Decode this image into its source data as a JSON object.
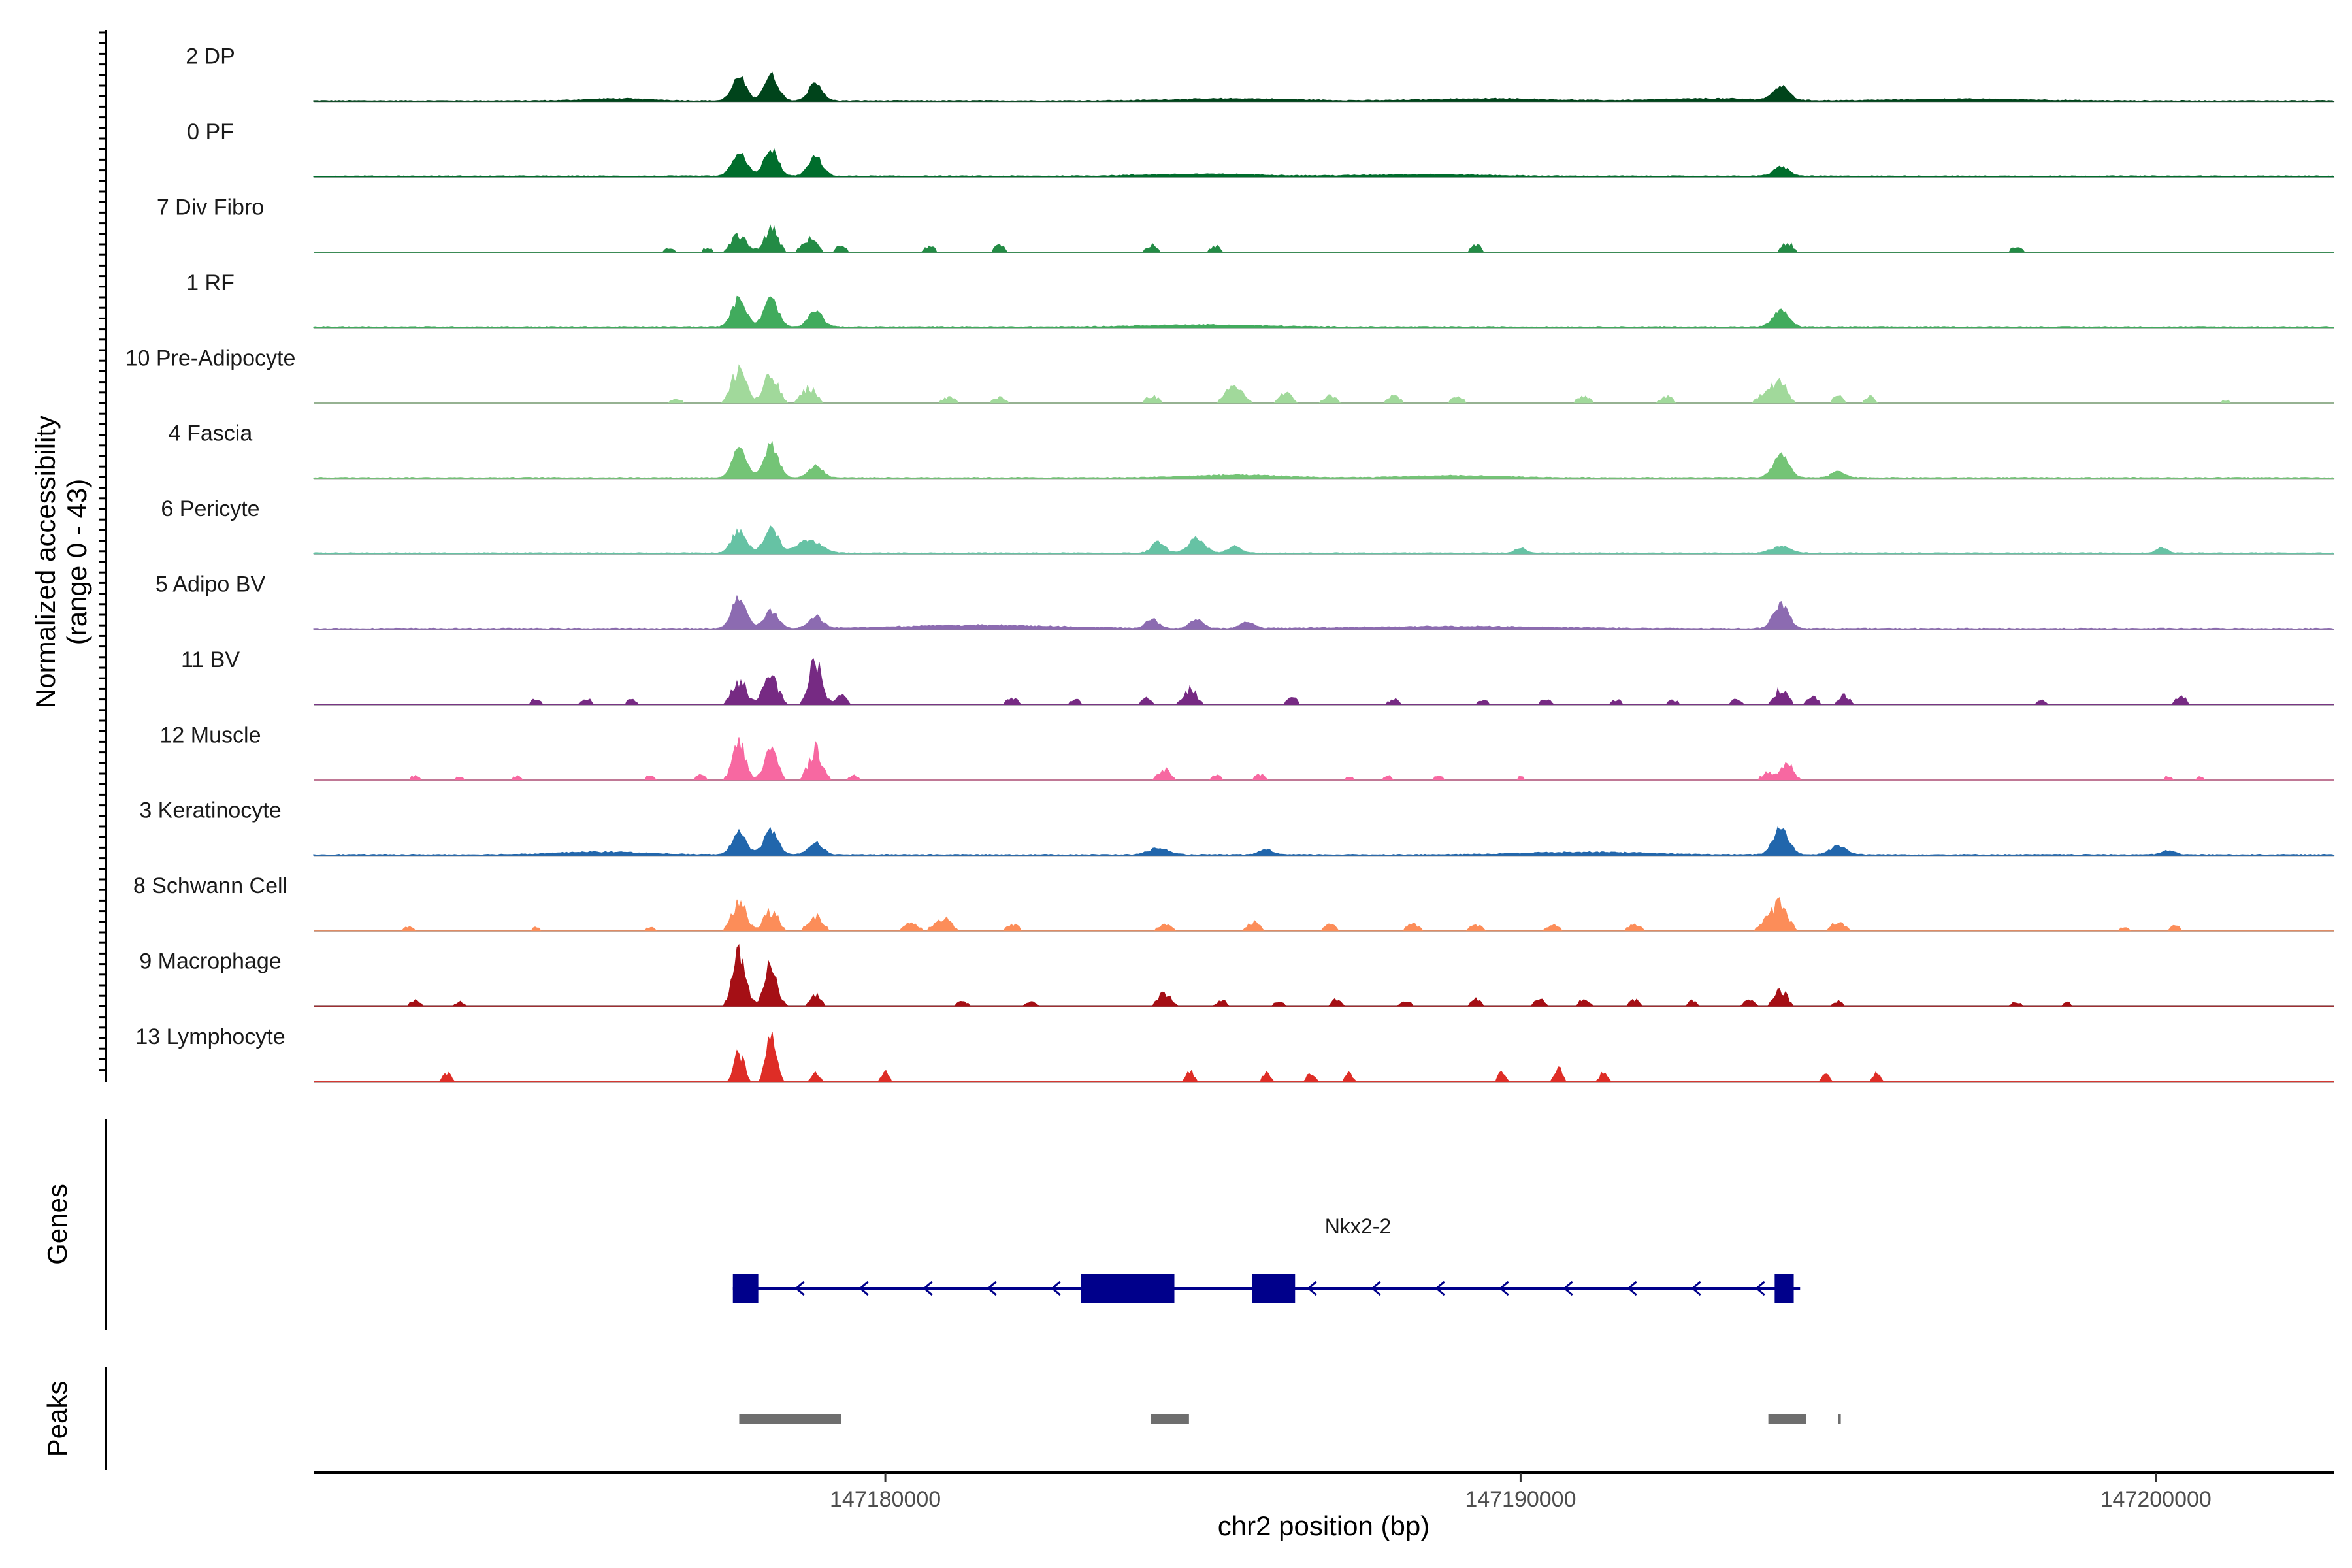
{
  "chart_data": {
    "type": "area",
    "title": "",
    "chromosome": "chr2",
    "xlabel": "chr2 position (bp)",
    "ylabel_line1": "Normalized accessibility",
    "ylabel_line2": "(range 0 - 43)",
    "xlim": [
      147171000,
      147202800
    ],
    "ylim": [
      0,
      43
    ],
    "x_ticks": [
      {
        "value": 147180000,
        "label": "147180000"
      },
      {
        "value": 147190000,
        "label": "147190000"
      },
      {
        "value": 147200000,
        "label": "147200000"
      }
    ],
    "series": [
      {
        "name": "2 DP",
        "label": "2 DP",
        "color": "#00441b",
        "mode": "smooth",
        "peaks": [
          [
            147177700,
            35,
            110
          ],
          [
            147178200,
            38,
            110
          ],
          [
            147178900,
            25,
            110
          ],
          [
            147194100,
            22,
            120
          ],
          [
            147185500,
            3,
            900
          ],
          [
            147189500,
            3,
            900
          ],
          [
            147193000,
            3,
            800
          ],
          [
            147197000,
            2.5,
            1000
          ],
          [
            147175800,
            3,
            500
          ]
        ]
      },
      {
        "name": "0 PF",
        "label": "0 PF",
        "color": "#006d2c",
        "mode": "smooth",
        "peaks": [
          [
            147177700,
            38,
            110
          ],
          [
            147178200,
            40,
            110
          ],
          [
            147178900,
            28,
            110
          ],
          [
            147194100,
            14,
            120
          ],
          [
            147185000,
            3,
            900
          ],
          [
            147188500,
            2.5,
            900
          ]
        ]
      },
      {
        "name": "7 Div Fibro",
        "label": "7 Div Fibro",
        "color": "#238b45",
        "mode": "spiky",
        "peaks": [
          [
            147176600,
            8,
            80
          ],
          [
            147177200,
            7,
            80
          ],
          [
            147177700,
            30,
            110
          ],
          [
            147178200,
            38,
            110
          ],
          [
            147178800,
            22,
            110
          ],
          [
            147179300,
            12,
            80
          ],
          [
            147180700,
            10,
            80
          ],
          [
            147181800,
            12,
            80
          ],
          [
            147184200,
            12,
            80
          ],
          [
            147185200,
            10,
            80
          ],
          [
            147189300,
            15,
            70
          ],
          [
            147194200,
            16,
            80
          ],
          [
            147197800,
            10,
            80
          ]
        ]
      },
      {
        "name": "1 RF",
        "label": "1 RF",
        "color": "#41ab5d",
        "mode": "smooth",
        "peaks": [
          [
            147177700,
            42,
            110
          ],
          [
            147178200,
            42,
            110
          ],
          [
            147178900,
            24,
            110
          ],
          [
            147194100,
            24,
            120
          ],
          [
            147185000,
            3,
            900
          ]
        ]
      },
      {
        "name": "10 Pre-Adipocyte",
        "label": "10 Pre-Adipocyte",
        "color": "#a1d99b",
        "mode": "spiky",
        "peaks": [
          [
            147177700,
            60,
            110
          ],
          [
            147178200,
            45,
            110
          ],
          [
            147178800,
            25,
            110
          ],
          [
            147176700,
            7,
            100
          ],
          [
            147181000,
            10,
            100
          ],
          [
            147181800,
            9,
            100
          ],
          [
            147184200,
            12,
            100
          ],
          [
            147185500,
            28,
            130
          ],
          [
            147186300,
            16,
            100
          ],
          [
            147187000,
            12,
            100
          ],
          [
            147188000,
            12,
            100
          ],
          [
            147189000,
            10,
            100
          ],
          [
            147191000,
            11,
            100
          ],
          [
            147192300,
            10,
            100
          ],
          [
            147193900,
            24,
            120
          ],
          [
            147194100,
            30,
            100
          ],
          [
            147195000,
            12,
            80
          ],
          [
            147195500,
            10,
            80
          ],
          [
            147201100,
            5,
            100
          ]
        ]
      },
      {
        "name": "4 Fascia",
        "label": "4 Fascia",
        "color": "#74c476",
        "mode": "smooth",
        "peaks": [
          [
            147177700,
            42,
            110
          ],
          [
            147178200,
            48,
            110
          ],
          [
            147178900,
            18,
            110
          ],
          [
            147194100,
            35,
            120
          ],
          [
            147195000,
            10,
            100
          ],
          [
            147185500,
            4,
            700
          ],
          [
            147189000,
            3,
            700
          ]
        ]
      },
      {
        "name": "6 Pericyte",
        "label": "6 Pericyte",
        "color": "#66c2a4",
        "mode": "smooth",
        "peaks": [
          [
            147177700,
            35,
            110
          ],
          [
            147178200,
            38,
            110
          ],
          [
            147178800,
            20,
            180
          ],
          [
            147184300,
            18,
            100
          ],
          [
            147184900,
            22,
            130
          ],
          [
            147185500,
            10,
            100
          ],
          [
            147190000,
            8,
            80
          ],
          [
            147194100,
            10,
            150
          ],
          [
            147200100,
            9,
            80
          ]
        ]
      },
      {
        "name": "5 Adipo BV",
        "label": "5 Adipo BV",
        "color": "#8c6bb1",
        "mode": "smooth",
        "peaks": [
          [
            147177700,
            48,
            110
          ],
          [
            147178200,
            26,
            110
          ],
          [
            147178900,
            18,
            110
          ],
          [
            147184200,
            13,
            100
          ],
          [
            147184900,
            15,
            100
          ],
          [
            147185700,
            10,
            100
          ],
          [
            147194100,
            36,
            120
          ],
          [
            147181500,
            5,
            1200
          ],
          [
            147189000,
            3,
            1500
          ]
        ]
      },
      {
        "name": "11 BV",
        "label": "11 BV",
        "color": "#762a83",
        "mode": "spiky",
        "peaks": [
          [
            147174500,
            9,
            80
          ],
          [
            147175300,
            10,
            80
          ],
          [
            147176000,
            8,
            80
          ],
          [
            147177700,
            40,
            110
          ],
          [
            147178200,
            48,
            110
          ],
          [
            147178900,
            70,
            100
          ],
          [
            147179300,
            16,
            80
          ],
          [
            147182000,
            12,
            80
          ],
          [
            147183000,
            8,
            80
          ],
          [
            147184100,
            10,
            80
          ],
          [
            147184800,
            26,
            100
          ],
          [
            147186400,
            12,
            80
          ],
          [
            147188000,
            9,
            80
          ],
          [
            147189400,
            8,
            80
          ],
          [
            147190400,
            9,
            80
          ],
          [
            147191500,
            8,
            80
          ],
          [
            147192400,
            8,
            80
          ],
          [
            147193400,
            9,
            80
          ],
          [
            147194100,
            26,
            100
          ],
          [
            147194600,
            13,
            80
          ],
          [
            147195100,
            16,
            80
          ],
          [
            147198200,
            7,
            80
          ],
          [
            147200400,
            14,
            80
          ]
        ]
      },
      {
        "name": "12 Muscle",
        "label": "12 Muscle",
        "color": "#f768a1",
        "mode": "spiky",
        "peaks": [
          [
            147172600,
            7,
            80
          ],
          [
            147173300,
            5,
            80
          ],
          [
            147174200,
            6,
            80
          ],
          [
            147176300,
            7,
            80
          ],
          [
            147177100,
            8,
            80
          ],
          [
            147177700,
            60,
            100
          ],
          [
            147178200,
            52,
            100
          ],
          [
            147178900,
            55,
            100
          ],
          [
            147179500,
            7,
            80
          ],
          [
            147184400,
            18,
            100
          ],
          [
            147185200,
            8,
            80
          ],
          [
            147185900,
            9,
            80
          ],
          [
            147187300,
            5,
            80
          ],
          [
            147187900,
            7,
            80
          ],
          [
            147188700,
            6,
            80
          ],
          [
            147190000,
            5,
            80
          ],
          [
            147193900,
            12,
            100
          ],
          [
            147194200,
            24,
            100
          ],
          [
            147200200,
            6,
            80
          ],
          [
            147200700,
            5,
            80
          ]
        ]
      },
      {
        "name": "3 Keratinocyte",
        "label": "3 Keratinocyte",
        "color": "#2166ac",
        "mode": "smooth",
        "peaks": [
          [
            147177700,
            35,
            110
          ],
          [
            147178200,
            38,
            110
          ],
          [
            147178900,
            18,
            110
          ],
          [
            147184300,
            10,
            150
          ],
          [
            147186000,
            8,
            100
          ],
          [
            147194100,
            40,
            120
          ],
          [
            147195000,
            13,
            130
          ],
          [
            147191000,
            4,
            900
          ],
          [
            147175500,
            4,
            700
          ],
          [
            147200200,
            6,
            100
          ]
        ]
      },
      {
        "name": "8 Schwann Cell",
        "label": "8 Schwann Cell",
        "color": "#fc8d59",
        "mode": "spiky",
        "peaks": [
          [
            147172500,
            7,
            80
          ],
          [
            147174500,
            6,
            80
          ],
          [
            147176300,
            6,
            80
          ],
          [
            147177700,
            50,
            110
          ],
          [
            147178200,
            35,
            110
          ],
          [
            147178900,
            25,
            110
          ],
          [
            147180400,
            14,
            100
          ],
          [
            147180900,
            22,
            120
          ],
          [
            147182000,
            10,
            100
          ],
          [
            147184400,
            12,
            100
          ],
          [
            147185800,
            14,
            100
          ],
          [
            147187000,
            10,
            100
          ],
          [
            147188300,
            11,
            100
          ],
          [
            147189300,
            9,
            100
          ],
          [
            147190500,
            10,
            100
          ],
          [
            147191800,
            12,
            100
          ],
          [
            147193900,
            16,
            120
          ],
          [
            147194100,
            45,
            110
          ],
          [
            147195000,
            16,
            100
          ],
          [
            147199500,
            6,
            80
          ],
          [
            147200300,
            8,
            80
          ]
        ]
      },
      {
        "name": "9 Macrophage",
        "label": "9 Macrophage",
        "color": "#a50f15",
        "mode": "spiky",
        "peaks": [
          [
            147172600,
            9,
            80
          ],
          [
            147173300,
            7,
            80
          ],
          [
            147177700,
            90,
            100
          ],
          [
            147178200,
            65,
            100
          ],
          [
            147178900,
            18,
            80
          ],
          [
            147181200,
            10,
            80
          ],
          [
            147182300,
            9,
            80
          ],
          [
            147184400,
            22,
            100
          ],
          [
            147185300,
            10,
            80
          ],
          [
            147186200,
            9,
            80
          ],
          [
            147187100,
            11,
            80
          ],
          [
            147188200,
            10,
            80
          ],
          [
            147189300,
            12,
            80
          ],
          [
            147190300,
            11,
            80
          ],
          [
            147191000,
            12,
            80
          ],
          [
            147191800,
            10,
            80
          ],
          [
            147192700,
            9,
            80
          ],
          [
            147193600,
            10,
            80
          ],
          [
            147194100,
            26,
            100
          ],
          [
            147195000,
            8,
            80
          ],
          [
            147197800,
            7,
            80
          ],
          [
            147198600,
            6,
            80
          ]
        ]
      },
      {
        "name": "13 Lymphocyte",
        "label": "13 Lymphocyte",
        "color": "#de2d26",
        "mode": "spiky",
        "peaks": [
          [
            147173100,
            14,
            60
          ],
          [
            147177700,
            45,
            80
          ],
          [
            147178200,
            75,
            80
          ],
          [
            147178900,
            14,
            60
          ],
          [
            147180000,
            15,
            60
          ],
          [
            147184800,
            18,
            60
          ],
          [
            147186000,
            14,
            60
          ],
          [
            147186700,
            16,
            60
          ],
          [
            147187300,
            15,
            60
          ],
          [
            147189700,
            14,
            60
          ],
          [
            147190600,
            22,
            60
          ],
          [
            147191300,
            14,
            60
          ],
          [
            147194800,
            12,
            60
          ],
          [
            147195600,
            16,
            60
          ]
        ]
      }
    ],
    "genes": {
      "track_label": "Genes",
      "name": "Nkx2-2",
      "strand": "-",
      "start": 147177600,
      "end": 147194400,
      "color": "#00008b",
      "exons": [
        [
          147177600,
          147178000
        ],
        [
          147183080,
          147184550
        ],
        [
          147185770,
          147186450
        ],
        [
          147194000,
          147194300
        ]
      ]
    },
    "peaks": {
      "track_label": "Peaks",
      "color": "#6e6e6e",
      "regions": [
        [
          147177700,
          147179300
        ],
        [
          147184180,
          147184780
        ],
        [
          147193900,
          147194500
        ],
        [
          147195000,
          147195020
        ]
      ]
    }
  }
}
